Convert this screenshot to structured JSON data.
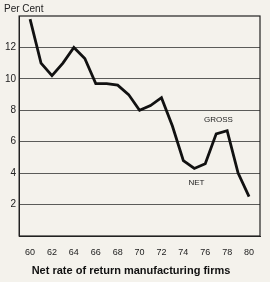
{
  "chart_data": {
    "type": "line",
    "title": "Net rate of return manufacturing firms",
    "y_label": "Per Cent",
    "x": [
      60,
      61,
      62,
      63,
      64,
      65,
      66,
      67,
      68,
      69,
      70,
      71,
      72,
      73,
      74,
      75,
      76,
      77,
      78,
      79,
      80
    ],
    "values": [
      13.8,
      11,
      10.2,
      11,
      12,
      11.3,
      9.7,
      9.7,
      9.6,
      9,
      8,
      8.3,
      8.8,
      7,
      4.8,
      4.3,
      4.6,
      6.5,
      6.7,
      4,
      2.5
    ],
    "color": "#111111",
    "xlim": [
      59,
      81
    ],
    "xticks": [
      60,
      62,
      64,
      66,
      68,
      70,
      72,
      74,
      76,
      78,
      80
    ],
    "ylim": [
      0,
      14
    ],
    "yticks": [
      2,
      4,
      6,
      8,
      10,
      12
    ],
    "grid": true,
    "annotations": [
      {
        "text": "GROSS",
        "x": 77.2,
        "y": 7.4
      },
      {
        "text": "NET",
        "x": 75.2,
        "y": 3.4
      }
    ]
  }
}
